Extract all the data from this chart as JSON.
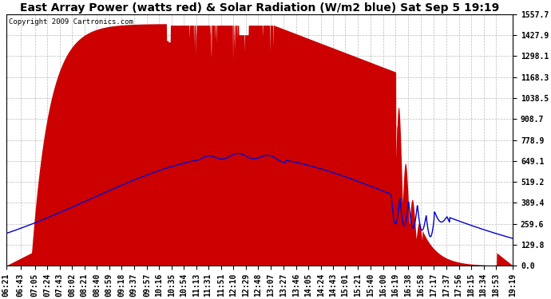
{
  "title": "East Array Power (watts red) & Solar Radiation (W/m2 blue) Sat Sep 5 19:19",
  "copyright": "Copyright 2009 Cartronics.com",
  "background_color": "#ffffff",
  "plot_bg_color": "#ffffff",
  "grid_color": "#aaaaaa",
  "fill_color": "#cc0000",
  "line_color": "#0000cc",
  "yticks": [
    0.0,
    129.8,
    259.6,
    389.4,
    519.2,
    649.1,
    778.9,
    908.7,
    1038.5,
    1168.3,
    1298.1,
    1427.9,
    1557.7
  ],
  "ymax": 1557.7,
  "xtick_labels": [
    "06:21",
    "06:43",
    "07:05",
    "07:24",
    "07:43",
    "08:02",
    "08:21",
    "08:40",
    "08:59",
    "09:18",
    "09:37",
    "09:57",
    "10:16",
    "10:35",
    "10:54",
    "11:13",
    "11:31",
    "11:51",
    "12:10",
    "12:29",
    "12:48",
    "13:07",
    "13:27",
    "13:46",
    "14:05",
    "14:24",
    "14:43",
    "15:01",
    "15:21",
    "15:40",
    "16:00",
    "16:19",
    "16:38",
    "16:58",
    "17:17",
    "17:37",
    "17:56",
    "18:15",
    "18:34",
    "18:53",
    "19:19"
  ],
  "title_fontsize": 10,
  "axis_fontsize": 7,
  "copyright_fontsize": 6.5,
  "figwidth": 6.9,
  "figheight": 3.75,
  "dpi": 100
}
